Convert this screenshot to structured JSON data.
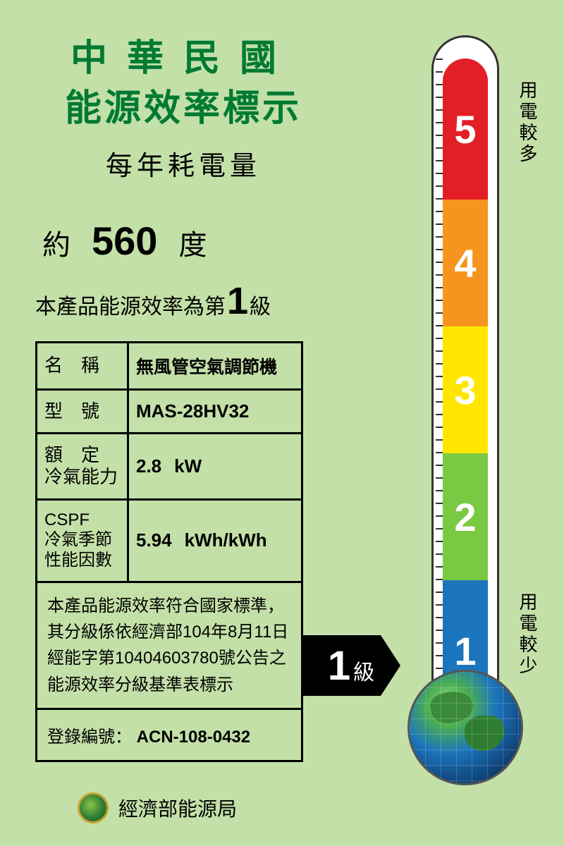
{
  "header": {
    "title_line1": "中華民國",
    "title_line2": "能源效率標示",
    "subtitle": "每年耗電量",
    "title_color": "#007a33"
  },
  "consumption": {
    "prefix": "約",
    "value": "560",
    "unit": "度"
  },
  "grade_statement": {
    "prefix": "本產品能源效率為第",
    "number": "1",
    "suffix": "級"
  },
  "spec_table": {
    "rows": [
      {
        "label": "名　稱",
        "value": "無風管空氣調節機"
      },
      {
        "label": "型　號",
        "value": "MAS-28HV32"
      },
      {
        "label": "額　定\n冷氣能力",
        "value": "2.8",
        "unit": "kW"
      },
      {
        "label": "CSPF\n冷氣季節\n性能因數",
        "value": "5.94",
        "unit": "kWh/kWh"
      }
    ],
    "note": "本產品能源效率符合國家標準，其分級係依經濟部104年8月11日經能字第10404603780號公告之能源效率分級基準表標示",
    "reg_label": "登錄編號：",
    "reg_value": "ACN-108-0432"
  },
  "tag": {
    "number": "1",
    "label": "級"
  },
  "footer": {
    "org": "經濟部能源局"
  },
  "thermometer": {
    "segments": [
      {
        "level": 5,
        "color": "#e41e26"
      },
      {
        "level": 4,
        "color": "#f7941d"
      },
      {
        "level": 3,
        "color": "#ffe600"
      },
      {
        "level": 2,
        "color": "#7ac943"
      },
      {
        "level": 1,
        "color": "#1b75bc"
      }
    ],
    "label_more": "用電較多",
    "label_less": "用電較少"
  },
  "colors": {
    "background": "#c3e0a8",
    "text": "#000000",
    "border": "#000000"
  }
}
